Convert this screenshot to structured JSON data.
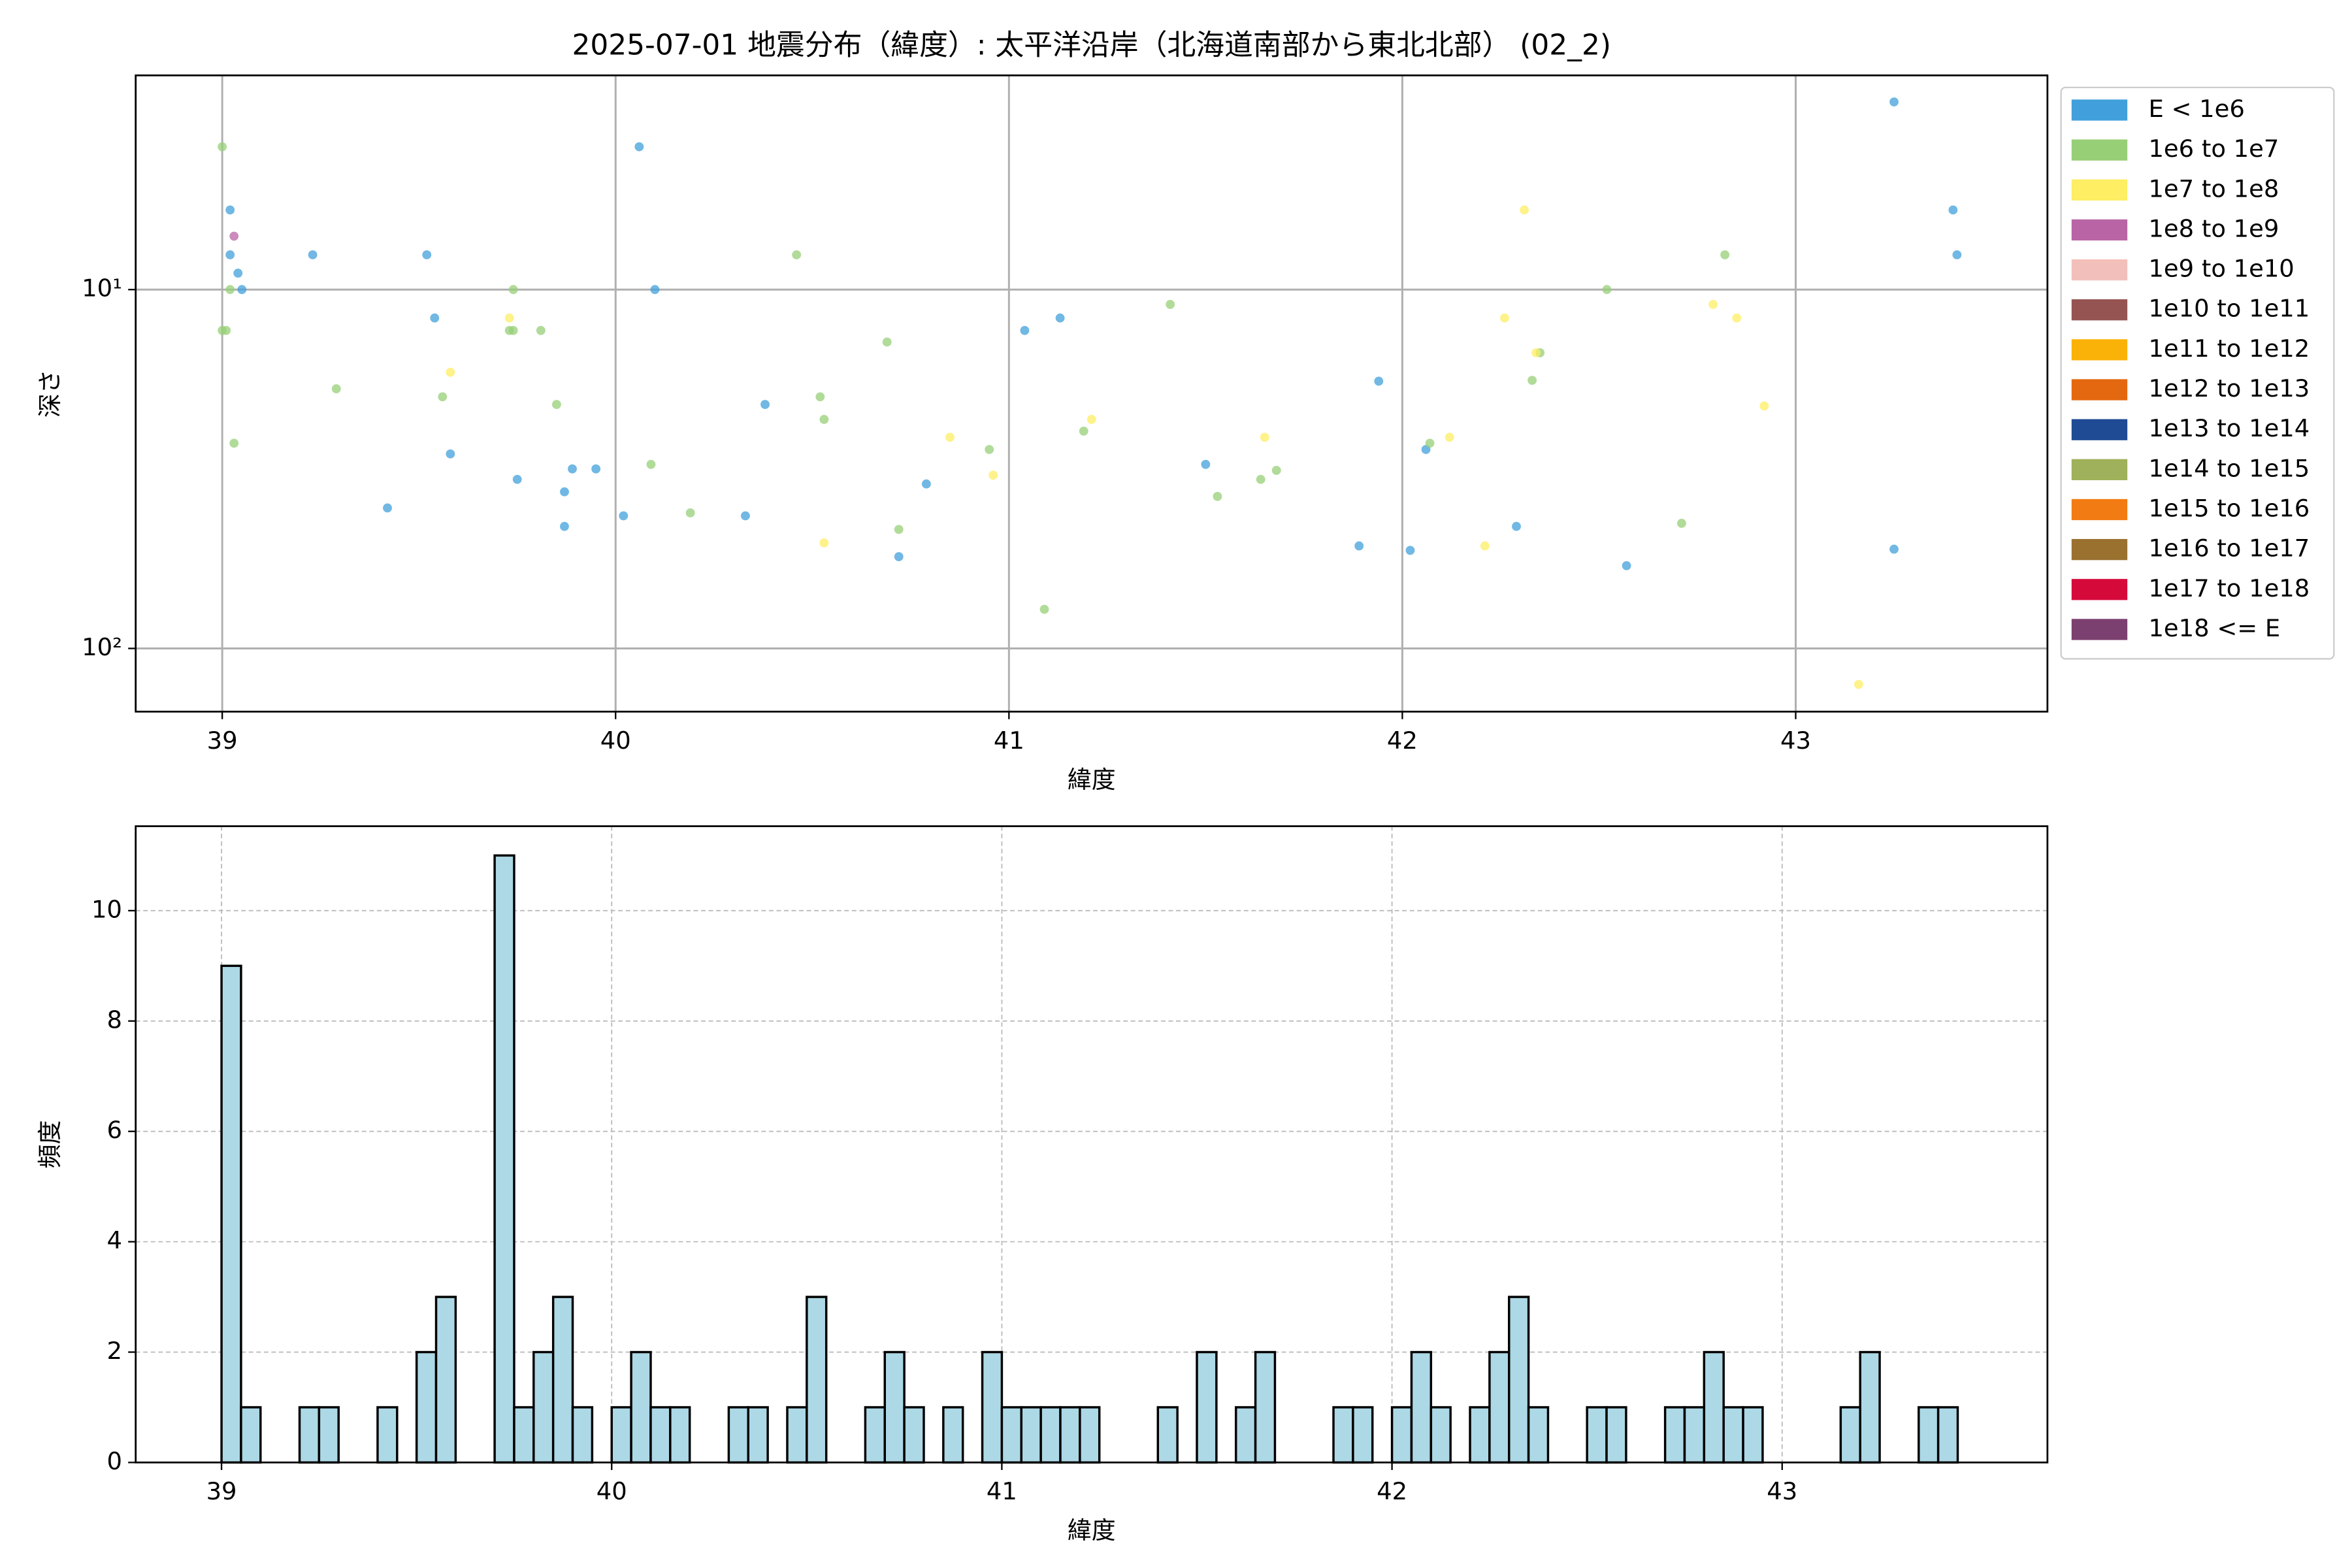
{
  "chart_data": [
    {
      "type": "scatter",
      "title": "2025-07-01 地震分布（緯度）: 太平洋沿岸（北海道南部から東北北部） (02_2)",
      "xlabel": "緯度",
      "ylabel": "深さ",
      "xlim": [
        38.78,
        43.64
      ],
      "xticks": [
        39,
        40,
        41,
        42,
        43
      ],
      "yscale": "log",
      "ylim": [
        150,
        2.53
      ],
      "yticks": [
        {
          "value": 10,
          "label": "10¹"
        },
        {
          "value": 100,
          "label": "10²"
        }
      ],
      "grid": true,
      "grid_linestyle": "solid",
      "legend": "outside upper right",
      "series": [
        {
          "name": "E < 1e6",
          "color": "#41a0db",
          "x": [
            39.02,
            39.02,
            39.04,
            39.05,
            39.23,
            39.52,
            39.54,
            39.58,
            39.42,
            39.75,
            39.87,
            39.87,
            39.89,
            39.95,
            40.02,
            40.06,
            40.1,
            40.33,
            40.38,
            40.79,
            40.72,
            41.04,
            41.13,
            41.5,
            41.89,
            41.94,
            42.02,
            42.06,
            42.29,
            42.57,
            43.25,
            43.25,
            43.4,
            43.41
          ],
          "values": [
            6.0,
            8.0,
            9.0,
            10,
            8.0,
            8.0,
            12.0,
            28.7,
            40.6,
            33.8,
            36.6,
            45.7,
            31.6,
            31.6,
            42.7,
            4.0,
            10,
            42.7,
            20.9,
            34.8,
            55.5,
            13.0,
            12.0,
            30.7,
            51.8,
            18.0,
            53.3,
            27.9,
            45.7,
            58.8,
            3.0,
            52.9,
            6.0,
            8.0
          ]
        },
        {
          "name": "1e6 to 1e7",
          "color": "#97cf77",
          "x": [
            39.0,
            39.0,
            39.01,
            39.02,
            39.03,
            39.29,
            39.56,
            39.73,
            39.74,
            39.74,
            39.81,
            39.85,
            40.09,
            40.19,
            40.46,
            40.52,
            40.53,
            40.69,
            40.72,
            40.95,
            41.09,
            41.19,
            41.41,
            41.53,
            41.64,
            41.68,
            42.07,
            42.33,
            42.35,
            42.52,
            42.71,
            42.82
          ],
          "values": [
            4.0,
            13.0,
            13.0,
            10,
            26.8,
            18.9,
            19.9,
            13,
            13,
            10,
            13,
            20.9,
            30.7,
            41.9,
            8.0,
            19.9,
            23.0,
            14.0,
            46.6,
            27.9,
            77.8,
            24.8,
            11.0,
            37.7,
            33.8,
            31.9,
            26.8,
            17.9,
            15.0,
            10,
            44.8,
            8.0
          ]
        },
        {
          "name": "1e7 to 1e8",
          "color": "#fdee63",
          "x": [
            39.73,
            39.58,
            40.53,
            40.85,
            40.96,
            41.21,
            41.65,
            42.12,
            42.21,
            42.26,
            42.31,
            42.34,
            42.79,
            42.85,
            42.92,
            43.16
          ],
          "values": [
            12,
            17.0,
            50.8,
            25.8,
            32.9,
            23,
            25.8,
            25.8,
            51.8,
            12,
            6.0,
            15,
            11,
            12,
            21.1,
            126
          ]
        },
        {
          "name": "1e8 to 1e9",
          "color": "#b965a5",
          "x": [
            39.03
          ],
          "values": [
            7.1
          ]
        },
        {
          "name": "1e9 to 1e10",
          "color": "#f3bfba",
          "x": [],
          "values": []
        },
        {
          "name": "1e10 to 1e11",
          "color": "#955451",
          "x": [],
          "values": []
        },
        {
          "name": "1e11 to 1e12",
          "color": "#fbb208",
          "x": [],
          "values": []
        },
        {
          "name": "1e12 to 1e13",
          "color": "#e4680f",
          "x": [],
          "values": []
        },
        {
          "name": "1e13 to 1e14",
          "color": "#1f4a94",
          "x": [],
          "values": []
        },
        {
          "name": "1e14 to 1e15",
          "color": "#9fb15a",
          "x": [],
          "values": []
        },
        {
          "name": "1e15 to 1e16",
          "color": "#f27c13",
          "x": [],
          "values": []
        },
        {
          "name": "1e16 to 1e17",
          "color": "#9a712f",
          "x": [],
          "values": []
        },
        {
          "name": "1e17 to 1e18",
          "color": "#d6093b",
          "x": [],
          "values": []
        },
        {
          "name": "1e18 <= E",
          "color": "#7c4070",
          "x": [],
          "values": []
        }
      ]
    },
    {
      "type": "histogram",
      "xlabel": "緯度",
      "ylabel": "頻度",
      "xlim": [
        38.78,
        43.68
      ],
      "xticks": [
        39,
        40,
        41,
        42,
        43
      ],
      "ylim": [
        0,
        11.53
      ],
      "yticks": [
        0,
        2,
        4,
        6,
        8,
        10
      ],
      "grid": true,
      "grid_linestyle": "dashed",
      "color": "#add8e6",
      "edgecolor": "#000000",
      "bins": [
        39.0,
        39.05,
        39.1,
        39.15,
        39.2,
        39.25,
        39.3,
        39.35,
        39.4,
        39.45,
        39.5,
        39.55,
        39.6,
        39.65,
        39.7,
        39.75,
        39.8,
        39.85,
        39.9,
        39.95,
        40.0,
        40.05,
        40.1,
        40.15,
        40.2,
        40.25,
        40.3,
        40.35,
        40.4,
        40.45,
        40.5,
        40.55,
        40.6,
        40.65,
        40.7,
        40.75,
        40.8,
        40.85,
        40.9,
        40.95,
        41.0,
        41.05,
        41.1,
        41.15,
        41.2,
        41.25,
        41.3,
        41.35,
        41.4,
        41.45,
        41.5,
        41.55,
        41.6,
        41.65,
        41.7,
        41.75,
        41.8,
        41.85,
        41.9,
        41.95,
        42.0,
        42.05,
        42.1,
        42.15,
        42.2,
        42.25,
        42.3,
        42.35,
        42.4,
        42.45,
        42.5,
        42.55,
        42.6,
        42.65,
        42.7,
        42.75,
        42.8,
        42.85,
        42.9,
        42.95,
        43.0,
        43.05,
        43.1,
        43.15,
        43.2,
        43.25,
        43.3,
        43.35,
        43.4,
        43.45
      ],
      "values": [
        9,
        1,
        0,
        0,
        1,
        1,
        0,
        0,
        1,
        0,
        2,
        3,
        0,
        0,
        11,
        1,
        2,
        3,
        1,
        0,
        1,
        2,
        1,
        1,
        0,
        0,
        1,
        1,
        0,
        1,
        3,
        0,
        0,
        1,
        2,
        1,
        0,
        1,
        0,
        2,
        1,
        1,
        1,
        1,
        1,
        0,
        0,
        0,
        1,
        0,
        2,
        0,
        1,
        2,
        0,
        0,
        0,
        1,
        1,
        0,
        1,
        2,
        1,
        0,
        1,
        2,
        3,
        1,
        0,
        0,
        1,
        1,
        0,
        0,
        1,
        1,
        2,
        1,
        1,
        0,
        0,
        0,
        0,
        1,
        2,
        0,
        0,
        1,
        1
      ]
    }
  ]
}
